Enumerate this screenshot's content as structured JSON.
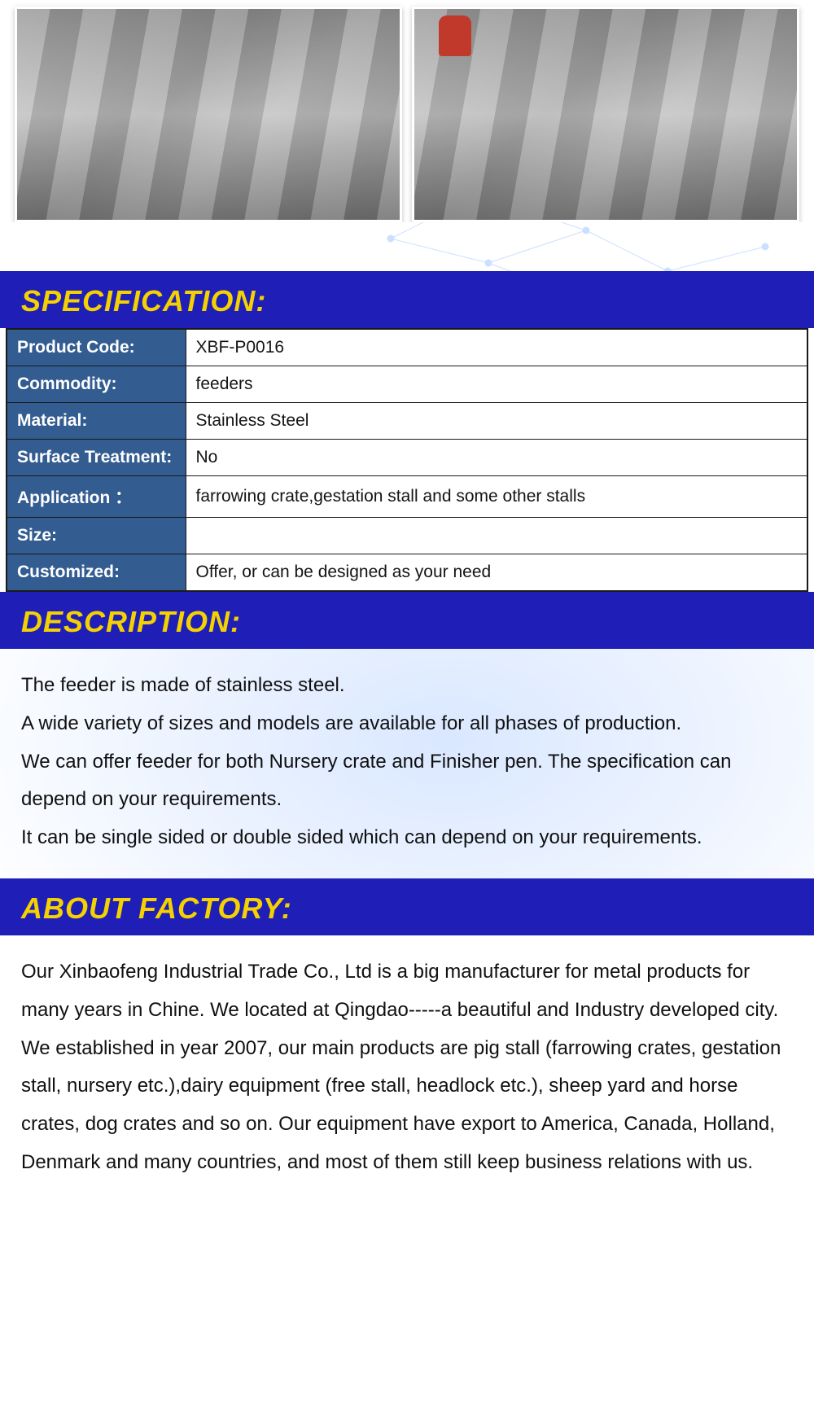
{
  "colors": {
    "header_bg": "#1f1fb8",
    "header_text": "#f5d100",
    "table_label_bg": "#335c91",
    "table_label_text": "#ffffff",
    "table_value_bg": "#ffffff",
    "table_value_text": "#141414",
    "body_text": "#101010",
    "network_line": "#6aa7ff"
  },
  "sections": {
    "specification_title": "SPECIFICATION:",
    "description_title": "DESCRIPTION:",
    "about_title": "ABOUT FACTORY:"
  },
  "spec_rows": [
    {
      "label": "Product Code:",
      "value": "XBF-P0016"
    },
    {
      "label": "Commodity:",
      "value": "feeders"
    },
    {
      "label": "Material:",
      "value": "Stainless Steel"
    },
    {
      "label": "Surface Treatment:",
      "value": "No"
    },
    {
      "label": "Application ：",
      "value": "farrowing crate,gestation stall and some other stalls"
    },
    {
      "label": "Size:",
      "value": ""
    },
    {
      "label": "Customized:",
      "value": "Offer, or can be designed as your need"
    }
  ],
  "description_lines": [
    "The feeder is made of stainless steel.",
    "A wide variety of sizes and models are available for all phases of production.",
    "We can offer feeder for both Nursery crate and Finisher pen. The specification can depend on your requirements.",
    "It can be single sided or double sided which can depend on your requirements."
  ],
  "about_lines": [
    "Our Xinbaofeng Industrial Trade Co., Ltd is a big manufacturer for metal products for many years in Chine. We located at Qingdao-----a beautiful and Industry developed city.",
    "We established in year 2007, our main products are pig stall (farrowing crates, gestation stall, nursery etc.),dairy equipment (free stall, headlock etc.), sheep yard and horse crates, dog crates and so on. Our equipment have export to America, Canada, Holland, Denmark and many countries, and most of them still keep business relations with us."
  ]
}
